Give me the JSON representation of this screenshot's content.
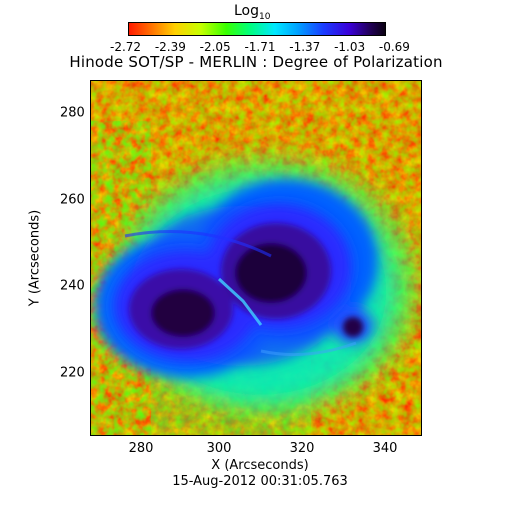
{
  "colorbar": {
    "title_base": "Log",
    "title_sub": "10",
    "tick_labels": [
      "-2.72",
      "-2.39",
      "-2.05",
      "-1.71",
      "-1.37",
      "-1.03",
      "-0.69"
    ]
  },
  "title": "Hinode SOT/SP - MERLIN : Degree of Polarization",
  "axes": {
    "x_label": "X (Arcseconds)",
    "y_label": "Y (Arcseconds)",
    "x_ticks": [
      "280",
      "300",
      "320",
      "340"
    ],
    "y_ticks": [
      "280",
      "260",
      "240",
      "220"
    ]
  },
  "timestamp": "15-Aug-2012 00:31:05.763"
}
